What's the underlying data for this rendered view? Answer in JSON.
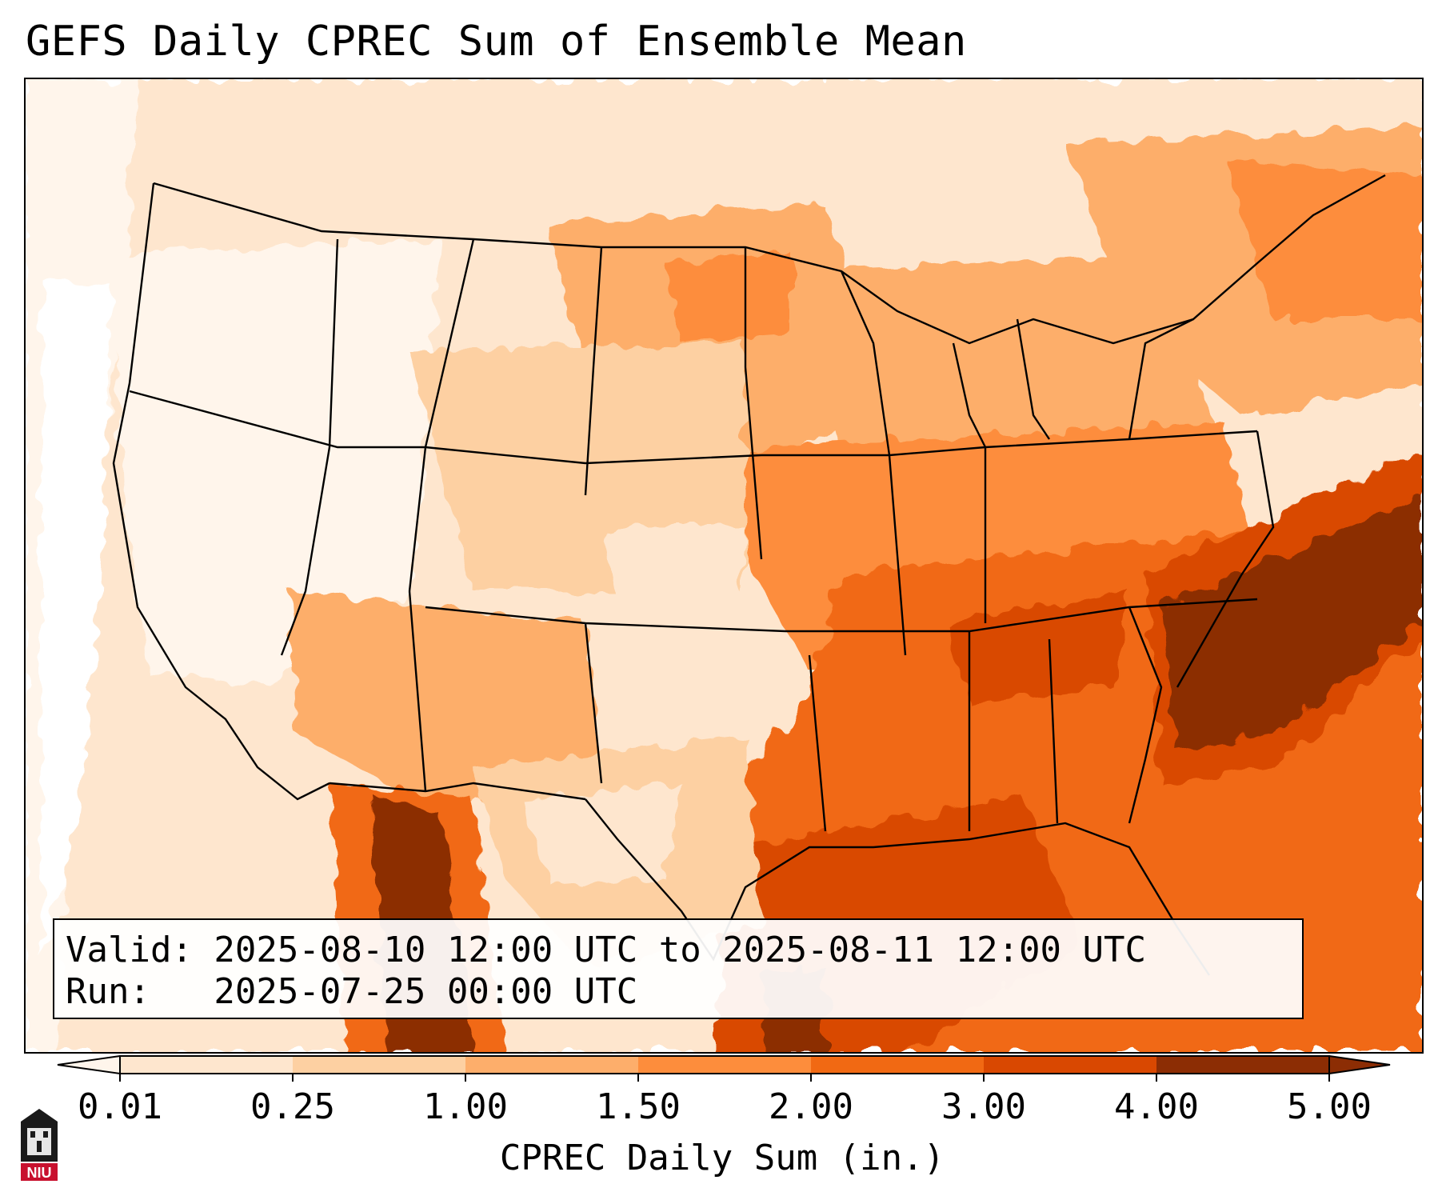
{
  "title": "GEFS Daily CPREC Sum of Ensemble Mean",
  "info": {
    "valid_line": "Valid: 2025-08-10 12:00 UTC to 2025-08-11 12:00 UTC",
    "run_line": "Run:   2025-07-25 00:00 UTC"
  },
  "colorbar": {
    "label": "CPREC Daily Sum (in.)",
    "ticks": [
      "0.01",
      "0.25",
      "1.00",
      "1.50",
      "2.00",
      "3.00",
      "4.00",
      "5.00"
    ],
    "colors": [
      "#fff5eb",
      "#fee6ce",
      "#fdd0a2",
      "#fdae6b",
      "#fd8d3c",
      "#f16913",
      "#d94801",
      "#8c2d04"
    ],
    "extend": "both"
  },
  "map": {
    "region": "CONUS",
    "field": "CPREC daily sum (in.)",
    "map_type": "gridded precipitation over state boundaries"
  },
  "logo": {
    "name": "niu-logo",
    "text": "NIU"
  }
}
